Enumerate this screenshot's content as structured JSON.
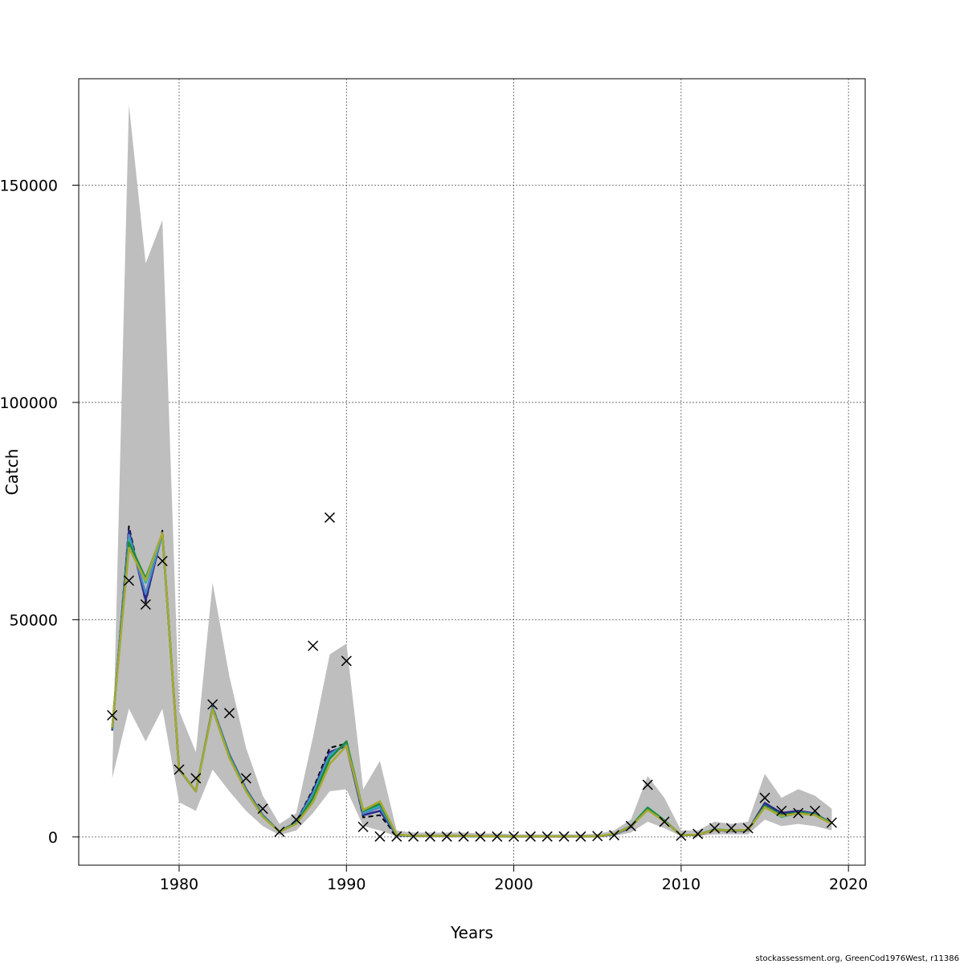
{
  "chart_data": {
    "type": "line",
    "xlabel": "Years",
    "ylabel": "Catch",
    "xlim": [
      1974,
      2021
    ],
    "ylim": [
      -6500,
      174500
    ],
    "x_ticks": [
      1980,
      1990,
      2000,
      2010,
      2020
    ],
    "y_ticks": [
      0,
      50000,
      100000,
      150000
    ],
    "x_tick_labels": [
      "1980",
      "1990",
      "2000",
      "2010",
      "2020"
    ],
    "y_tick_labels": [
      "0",
      "50000",
      "100000",
      "150000"
    ],
    "grid": true,
    "years": [
      1976,
      1977,
      1978,
      1979,
      1980,
      1981,
      1982,
      1983,
      1984,
      1985,
      1986,
      1987,
      1988,
      1989,
      1990,
      1991,
      1992,
      1993,
      1994,
      1995,
      1996,
      1997,
      1998,
      1999,
      2000,
      2001,
      2002,
      2003,
      2004,
      2005,
      2006,
      2007,
      2008,
      2009,
      2010,
      2011,
      2012,
      2013,
      2014,
      2015,
      2016,
      2017,
      2018,
      2019
    ],
    "band": {
      "color": "#bebebe",
      "upper": [
        13500,
        168500,
        132000,
        142000,
        29000,
        19500,
        58500,
        37000,
        20500,
        9500,
        3000,
        5500,
        23000,
        42000,
        44500,
        11000,
        17500,
        1500,
        1000,
        1000,
        1000,
        1000,
        800,
        800,
        600,
        600,
        600,
        600,
        600,
        700,
        1500,
        4000,
        14000,
        9000,
        1500,
        1500,
        3500,
        3000,
        3500,
        14500,
        9000,
        11000,
        9500,
        6500
      ],
      "lower": [
        13500,
        29500,
        22000,
        29500,
        8000,
        6000,
        15500,
        10500,
        6000,
        2500,
        400,
        1500,
        5500,
        10500,
        11000,
        2500,
        1500,
        100,
        50,
        50,
        50,
        50,
        30,
        30,
        20,
        20,
        20,
        20,
        20,
        30,
        200,
        1000,
        3500,
        2000,
        200,
        200,
        600,
        600,
        600,
        4000,
        2500,
        3000,
        2500,
        1500
      ]
    },
    "series": [
      {
        "color": "#000000",
        "style": "dashed",
        "values": [
          24500,
          71500,
          54000,
          70500,
          15500,
          10500,
          30000,
          19000,
          11000,
          5000,
          1200,
          3500,
          11000,
          20500,
          21500,
          4500,
          5000,
          300,
          150,
          150,
          150,
          150,
          100,
          100,
          80,
          80,
          80,
          80,
          80,
          100,
          500,
          2200,
          6500,
          3600,
          300,
          400,
          1500,
          1300,
          1400,
          7600,
          5200,
          5800,
          5200,
          3000
        ]
      },
      {
        "color": "#2b2b8c",
        "style": "solid",
        "values": [
          24500,
          70500,
          54500,
          70000,
          15500,
          10500,
          29800,
          19000,
          11000,
          5000,
          1200,
          3400,
          10500,
          19500,
          21000,
          5000,
          6000,
          400,
          180,
          180,
          180,
          180,
          120,
          120,
          90,
          90,
          90,
          90,
          90,
          110,
          550,
          2300,
          6600,
          3700,
          350,
          450,
          1600,
          1400,
          1500,
          7800,
          5500,
          6000,
          5400,
          3100
        ]
      },
      {
        "color": "#4f86c6",
        "style": "solid",
        "values": [
          24800,
          69500,
          56000,
          69800,
          15500,
          10500,
          29700,
          18800,
          10800,
          4900,
          1200,
          3300,
          10000,
          19000,
          21500,
          5400,
          6800,
          450,
          200,
          200,
          200,
          200,
          130,
          130,
          100,
          100,
          100,
          100,
          100,
          120,
          600,
          2400,
          6700,
          3700,
          380,
          480,
          1650,
          1450,
          1550,
          7200,
          4800,
          5700,
          5300,
          3100
        ]
      },
      {
        "color": "#2ab0b0",
        "style": "solid",
        "values": [
          25000,
          68500,
          58500,
          69500,
          15600,
          10500,
          29600,
          18600,
          10700,
          4800,
          1200,
          3200,
          9500,
          18500,
          21800,
          5800,
          7300,
          500,
          220,
          220,
          220,
          220,
          140,
          140,
          110,
          110,
          110,
          110,
          110,
          130,
          650,
          2500,
          6800,
          3800,
          400,
          500,
          1700,
          1500,
          1600,
          7000,
          4600,
          5500,
          5200,
          3100
        ]
      },
      {
        "color": "#1f8a3c",
        "style": "solid",
        "values": [
          25000,
          67800,
          59500,
          69800,
          15600,
          10500,
          29500,
          18400,
          10600,
          4700,
          1200,
          3100,
          9000,
          18000,
          22000,
          6000,
          7600,
          520,
          230,
          230,
          230,
          230,
          150,
          150,
          120,
          120,
          120,
          120,
          120,
          140,
          680,
          2500,
          6700,
          3800,
          400,
          500,
          1700,
          1500,
          1600,
          7200,
          5000,
          5600,
          5200,
          3100
        ]
      },
      {
        "color": "#a7a834",
        "style": "solid",
        "values": [
          25200,
          66500,
          59000,
          70000,
          15600,
          10500,
          29400,
          18200,
          10500,
          4600,
          1200,
          3000,
          8000,
          16800,
          21000,
          6200,
          8200,
          550,
          240,
          240,
          240,
          240,
          160,
          160,
          130,
          130,
          130,
          130,
          130,
          150,
          700,
          2400,
          6200,
          3600,
          400,
          500,
          1600,
          1500,
          1600,
          6800,
          4800,
          5400,
          5000,
          3000
        ]
      }
    ],
    "observed": {
      "marker": "x",
      "years": [
        1976,
        1977,
        1978,
        1979,
        1980,
        1981,
        1982,
        1983,
        1984,
        1985,
        1986,
        1987,
        1988,
        1989,
        1990,
        1991,
        1992,
        1993,
        1994,
        1995,
        1996,
        1997,
        1998,
        1999,
        2000,
        2001,
        2002,
        2003,
        2004,
        2005,
        2006,
        2007,
        2008,
        2009,
        2010,
        2011,
        2012,
        2013,
        2014,
        2015,
        2016,
        2017,
        2018,
        2019
      ],
      "values": [
        28000,
        59000,
        53500,
        63500,
        15500,
        13500,
        30500,
        28500,
        13500,
        6500,
        1200,
        4000,
        44000,
        73500,
        40500,
        2300,
        100,
        100,
        100,
        100,
        100,
        100,
        100,
        100,
        100,
        100,
        100,
        100,
        100,
        200,
        400,
        2500,
        12000,
        3500,
        300,
        700,
        2000,
        2000,
        2000,
        9000,
        6000,
        5500,
        6000,
        3300
      ]
    }
  },
  "footer": {
    "credit": "stockassessment.org, GreenCod1976West, r11386"
  }
}
